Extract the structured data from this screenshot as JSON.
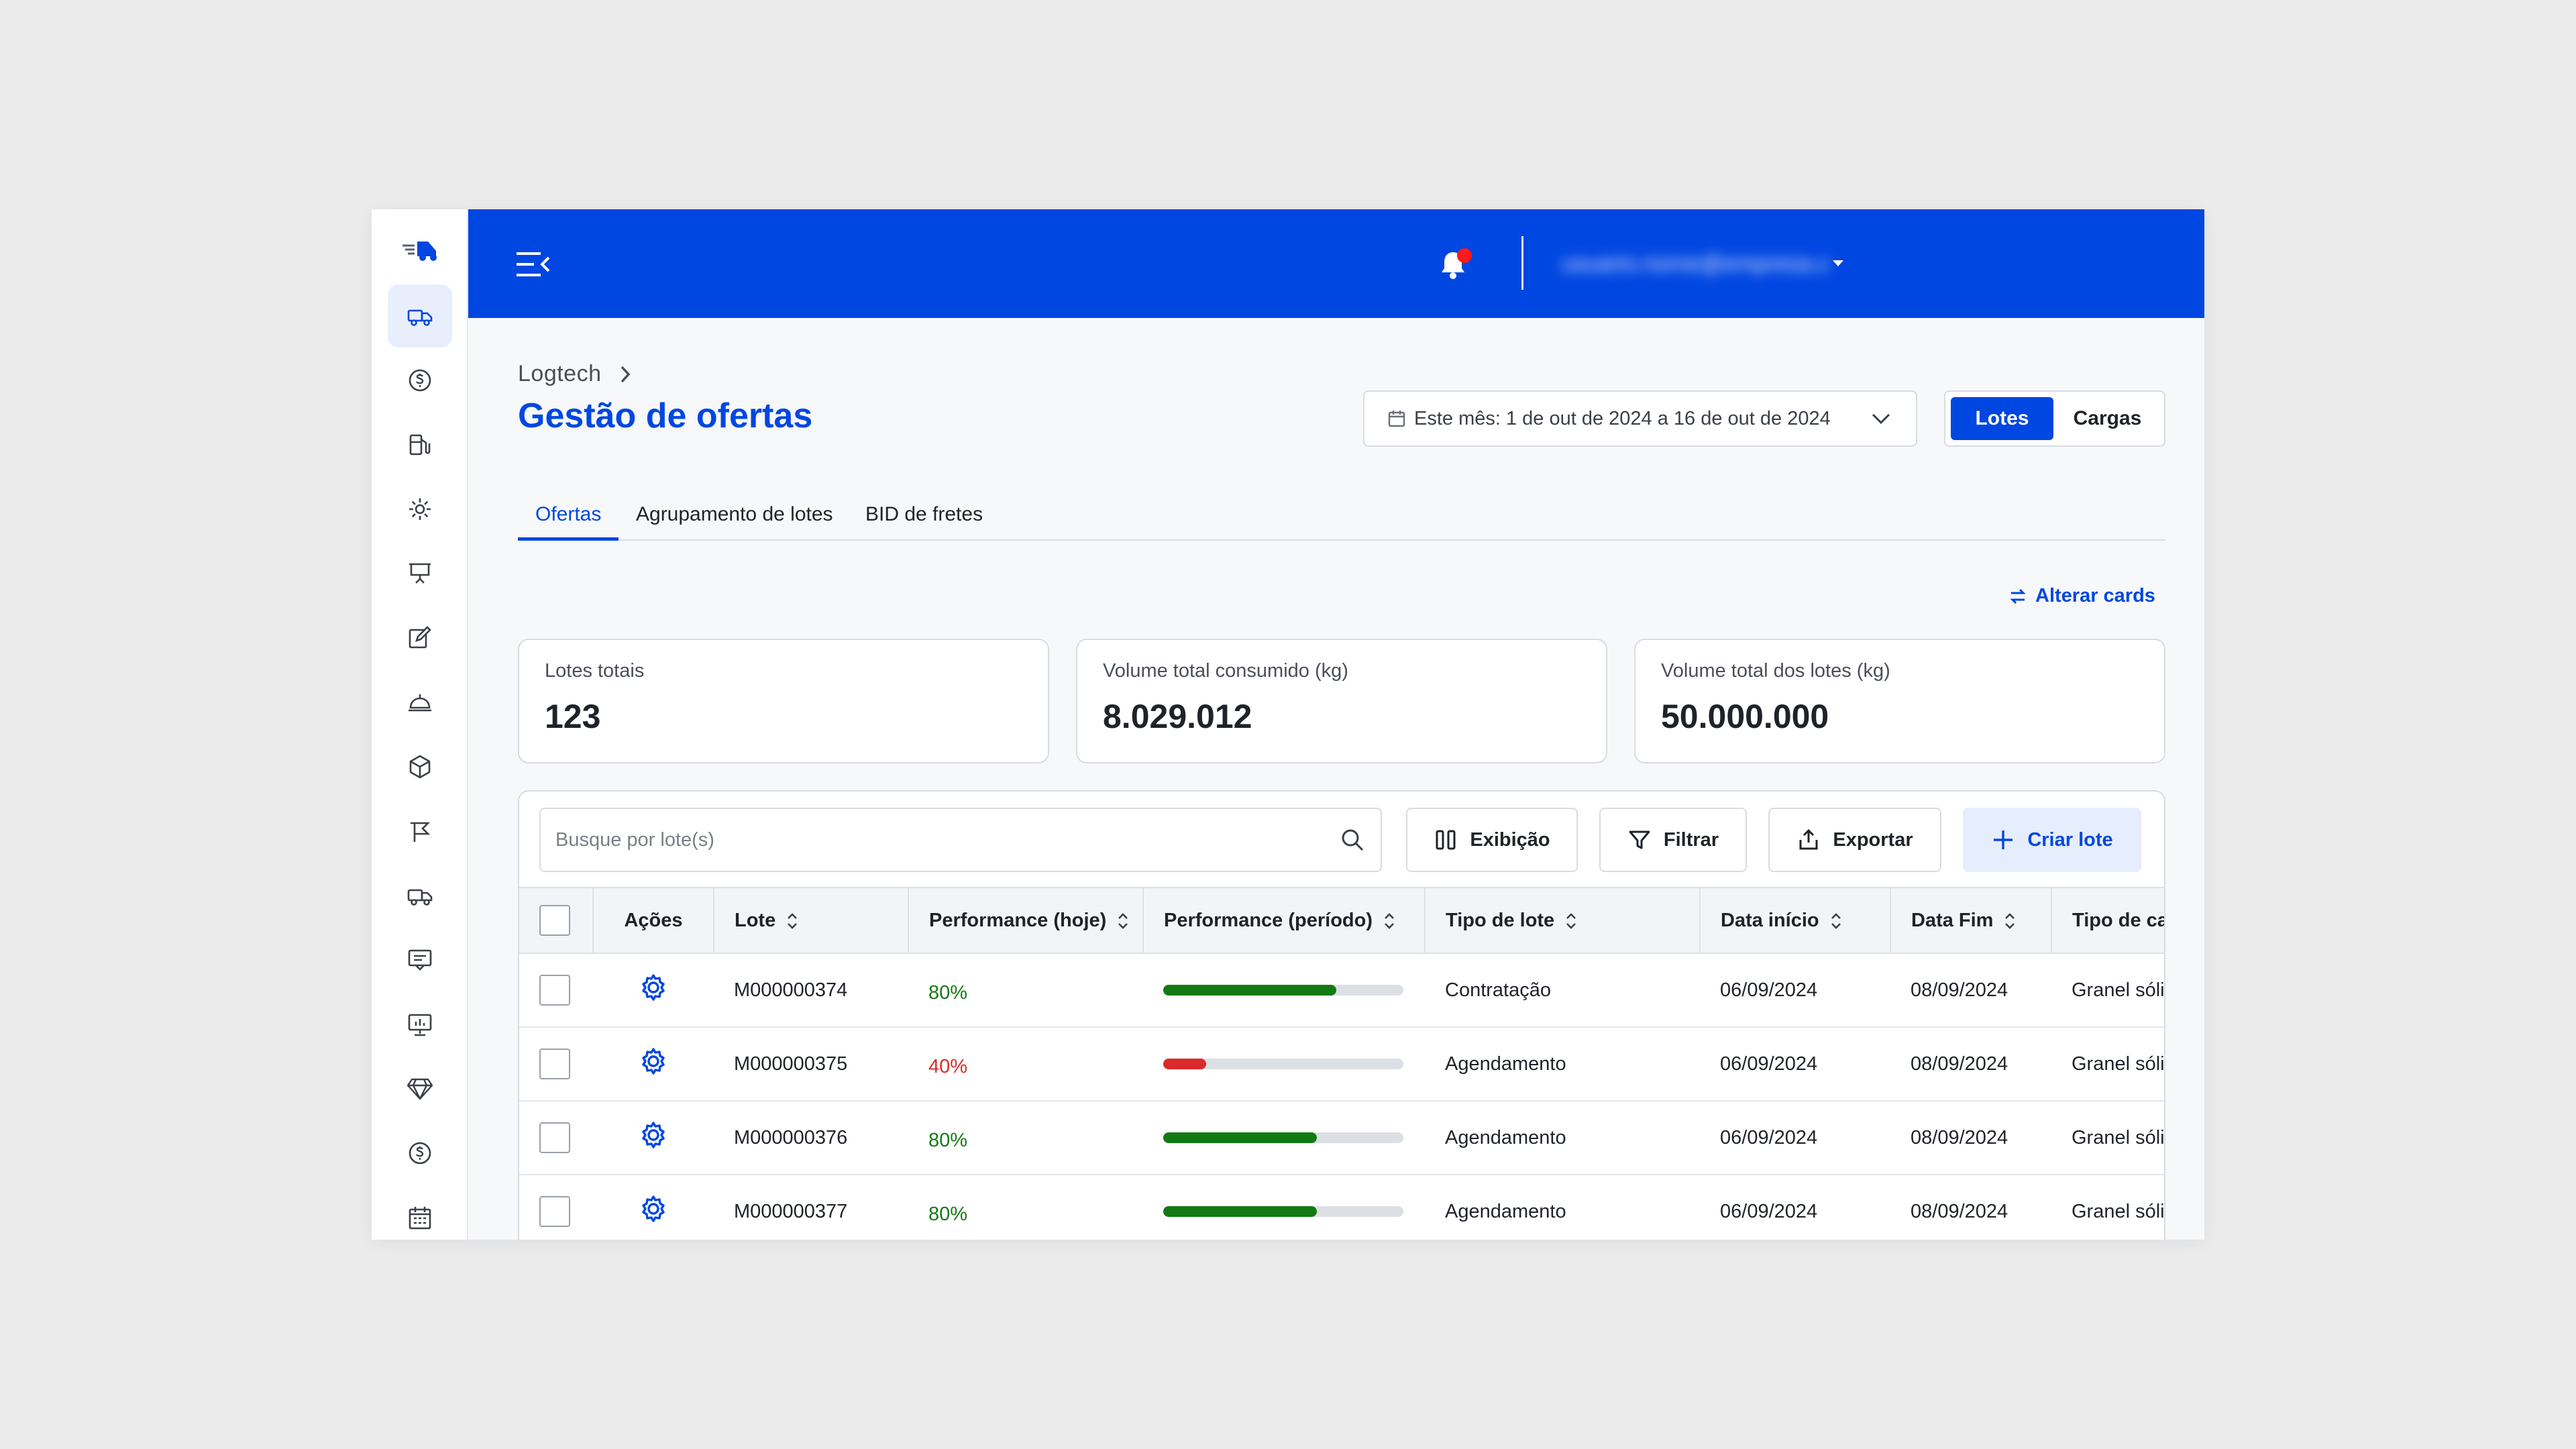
{
  "colors": {
    "brand": "#0047e1",
    "good": "#137a13",
    "bad": "#d92b2b",
    "alert_dot": "#ff1a1a"
  },
  "sidebar": {
    "logo_icon": "truck-speed-logo",
    "items": [
      {
        "icon": "truck-icon",
        "active": true
      },
      {
        "icon": "dollar-coin-icon",
        "active": false
      },
      {
        "icon": "fuel-pump-icon",
        "active": false
      },
      {
        "icon": "gear-icon",
        "active": false
      },
      {
        "icon": "presentation-board-icon",
        "active": false
      },
      {
        "icon": "edit-square-icon",
        "active": false
      },
      {
        "icon": "service-bell-icon",
        "active": false
      },
      {
        "icon": "package-box-icon",
        "active": false
      },
      {
        "icon": "route-flag-icon",
        "active": false
      },
      {
        "icon": "delivery-truck-icon",
        "active": false
      },
      {
        "icon": "chat-message-icon",
        "active": false
      },
      {
        "icon": "chart-board-icon",
        "active": false
      },
      {
        "icon": "diamond-icon",
        "active": false
      },
      {
        "icon": "dollar-coin-icon",
        "active": false
      },
      {
        "icon": "calendar-icon",
        "active": false
      }
    ]
  },
  "header": {
    "menu_icon": "menu-collapse-icon",
    "bell_icon": "bell-icon",
    "user_name_blurred": "usuario.nome@empresa.com"
  },
  "breadcrumb": {
    "root": "Logtech"
  },
  "page": {
    "title": "Gestão de ofertas"
  },
  "date_filter": {
    "label": "Este mês: 1 de out de 2024 a 16 de out de 2024"
  },
  "view_toggle": {
    "options": [
      "Lotes",
      "Cargas"
    ],
    "selected": "Lotes"
  },
  "tabs": [
    {
      "label": "Ofertas",
      "active": true
    },
    {
      "label": "Agrupamento de lotes",
      "active": false
    },
    {
      "label": "BID de fretes",
      "active": false
    }
  ],
  "alter_cards": {
    "label": "Alterar cards"
  },
  "cards": [
    {
      "label": "Lotes totais",
      "value": "123"
    },
    {
      "label": "Volume total consumido (kg)",
      "value": "8.029.012"
    },
    {
      "label": "Volume total dos lotes (kg)",
      "value": "50.000.000"
    }
  ],
  "toolbar": {
    "search_placeholder": "Busque por lote(s)",
    "display_label": "Exibição",
    "filter_label": "Filtrar",
    "export_label": "Exportar",
    "create_label": "Criar lote"
  },
  "table": {
    "columns": [
      "Ações",
      "Lote",
      "Performance (hoje)",
      "Performance (período)",
      "Tipo de lote",
      "Data início",
      "Data Fim",
      "Tipo de ca"
    ],
    "rows": [
      {
        "lote": "M000000374",
        "perf_hoje": "80%",
        "perf_status": "good",
        "perf_periodo": 0.72,
        "tipo": "Contratação",
        "inicio": "06/09/2024",
        "fim": "08/09/2024",
        "tipo_carga": "Granel sóli"
      },
      {
        "lote": "M000000375",
        "perf_hoje": "40%",
        "perf_status": "bad",
        "perf_periodo": 0.18,
        "tipo": "Agendamento",
        "inicio": "06/09/2024",
        "fim": "08/09/2024",
        "tipo_carga": "Granel sóli"
      },
      {
        "lote": "M000000376",
        "perf_hoje": "80%",
        "perf_status": "good",
        "perf_periodo": 0.64,
        "tipo": "Agendamento",
        "inicio": "06/09/2024",
        "fim": "08/09/2024",
        "tipo_carga": "Granel sóli"
      },
      {
        "lote": "M000000377",
        "perf_hoje": "80%",
        "perf_status": "good",
        "perf_periodo": 0.64,
        "tipo": "Agendamento",
        "inicio": "06/09/2024",
        "fim": "08/09/2024",
        "tipo_carga": "Granel sóli"
      }
    ]
  }
}
